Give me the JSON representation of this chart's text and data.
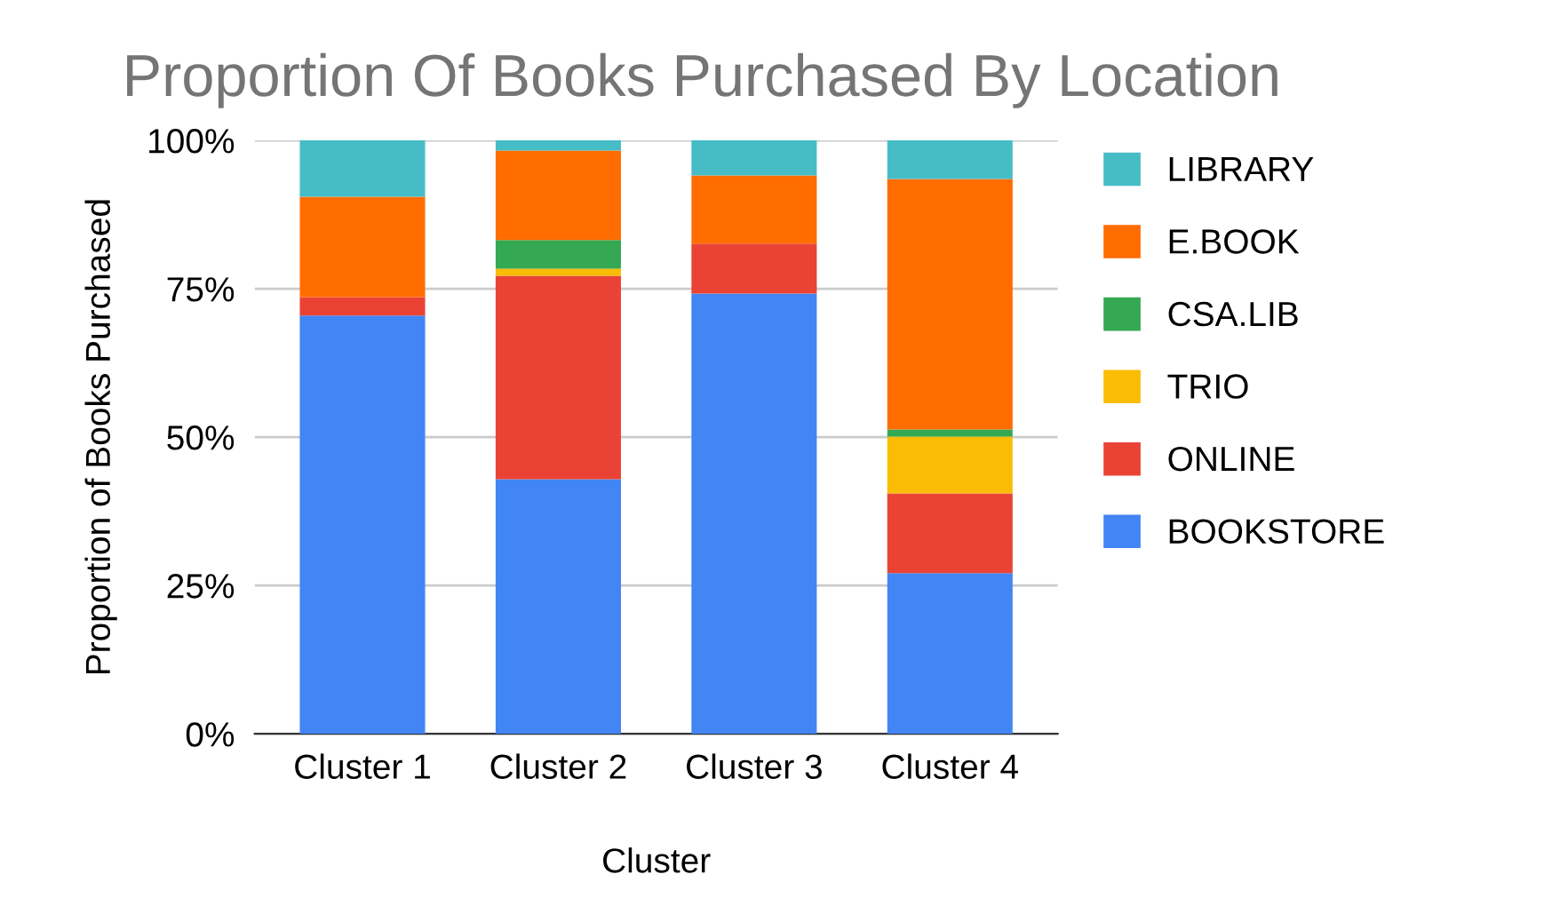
{
  "chart_data": {
    "type": "bar",
    "stacked": true,
    "title": "Proportion Of Books Purchased By Location",
    "xlabel": "Cluster",
    "ylabel": "Proportion of Books Purchased",
    "categories": [
      "Cluster 1",
      "Cluster 2",
      "Cluster 3",
      "Cluster 4"
    ],
    "series": [
      {
        "name": "BOOKSTORE",
        "color": "#4285f4",
        "values": [
          70.5,
          42.9,
          74.2,
          27.1
        ]
      },
      {
        "name": "ONLINE",
        "color": "#ea4335",
        "values": [
          3.1,
          34.3,
          8.4,
          13.4
        ]
      },
      {
        "name": "TRIO",
        "color": "#fbbc04",
        "values": [
          0,
          1.2,
          0,
          9.6
        ]
      },
      {
        "name": "CSA.LIB",
        "color": "#34a853",
        "values": [
          0,
          4.8,
          0,
          1.2
        ]
      },
      {
        "name": "E.BOOK",
        "color": "#ff6d01",
        "values": [
          16.9,
          15.1,
          11.5,
          42.2
        ]
      },
      {
        "name": "LIBRARY",
        "color": "#46bdc6",
        "values": [
          9.5,
          1.7,
          5.9,
          6.5
        ]
      }
    ],
    "ylim": [
      0,
      100
    ],
    "yticks": [
      {
        "value": 0,
        "label": "0%"
      },
      {
        "value": 25,
        "label": "25%"
      },
      {
        "value": 50,
        "label": "50%"
      },
      {
        "value": 75,
        "label": "75%"
      },
      {
        "value": 100,
        "label": "100%"
      }
    ],
    "grid": "y",
    "legend": "right"
  }
}
